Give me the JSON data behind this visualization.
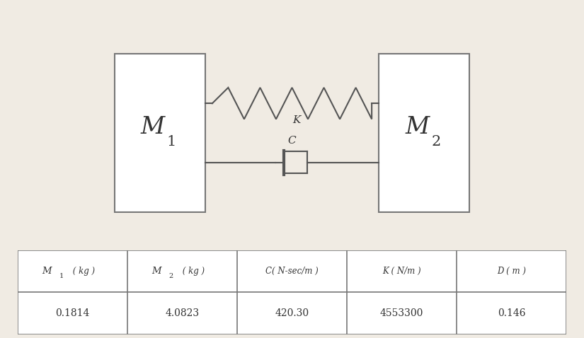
{
  "bg_color": "#f0ebe3",
  "line_color": "#555555",
  "box_edge_color": "#777777",
  "table_headers": [
    "M1 ( kg )",
    "M2 ( kg )",
    "C( N-sec/m )",
    "K ( N/m )",
    "D ( m )"
  ],
  "table_values": [
    "0.1814",
    "4.0823",
    "420.30",
    "4553300",
    "0.146"
  ],
  "K_label": "K",
  "C_label": "C"
}
